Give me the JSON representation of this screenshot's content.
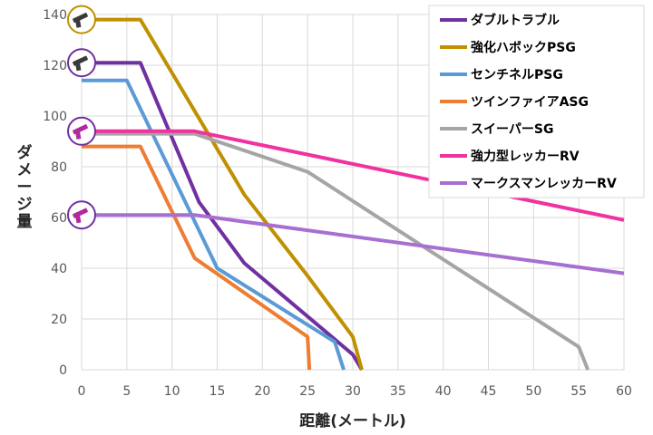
{
  "chart_data": {
    "type": "line",
    "xlabel": "距離(メートル)",
    "ylabel": "ダメージ量",
    "xlim": [
      0,
      60
    ],
    "ylim": [
      0,
      140
    ],
    "xticks": [
      0,
      5,
      10,
      15,
      20,
      25,
      30,
      35,
      40,
      45,
      50,
      55,
      60
    ],
    "yticks": [
      0,
      20,
      40,
      60,
      80,
      100,
      120,
      140
    ],
    "grid": true,
    "legend": "top-right",
    "series": [
      {
        "name": "ダブルトラブル",
        "color": "#7030a0",
        "x": [
          0,
          6.5,
          13,
          18,
          25,
          30,
          31
        ],
        "y": [
          121,
          121,
          66,
          42,
          21,
          6,
          0
        ]
      },
      {
        "name": "強化ハボックPSG",
        "color": "#bf9000",
        "x": [
          0,
          6.5,
          18,
          25,
          30,
          31
        ],
        "y": [
          138,
          138,
          69,
          37,
          13,
          0
        ]
      },
      {
        "name": "センチネルPSG",
        "color": "#5b9bd5",
        "x": [
          0,
          5,
          15,
          28,
          29
        ],
        "y": [
          114,
          114,
          40,
          11,
          0
        ]
      },
      {
        "name": "ツインファイアASG",
        "color": "#ed7d31",
        "x": [
          0,
          6.5,
          12.5,
          25,
          25.2
        ],
        "y": [
          88,
          88,
          44,
          13,
          0
        ]
      },
      {
        "name": "スイーパーSG",
        "color": "#a5a5a5",
        "x": [
          0,
          12.5,
          25,
          55,
          56
        ],
        "y": [
          93,
          93,
          78,
          9,
          0
        ]
      },
      {
        "name": "強力型レッカーRV",
        "color": "#f032a0",
        "x": [
          0,
          12.5,
          60
        ],
        "y": [
          94,
          94,
          59
        ]
      },
      {
        "name": "マークスマンレッカーRV",
        "color": "#a66fd1",
        "x": [
          0,
          12.5,
          60
        ],
        "y": [
          61,
          61,
          38
        ]
      }
    ],
    "markers": [
      {
        "series": "強化ハボックPSG",
        "x": 0,
        "y": 138,
        "ring": "#bf9000",
        "icon": "shotgun-icon"
      },
      {
        "series": "ダブルトラブル",
        "x": 0,
        "y": 121,
        "ring": "#7030a0",
        "icon": "shotgun-icon"
      },
      {
        "series": "強力型レッカーRV",
        "x": 0,
        "y": 94,
        "ring": "#7030a0",
        "icon": "revolver-icon"
      },
      {
        "series": "マークスマンレッカーRV",
        "x": 0,
        "y": 61,
        "ring": "#7030a0",
        "icon": "revolver-icon"
      }
    ]
  }
}
